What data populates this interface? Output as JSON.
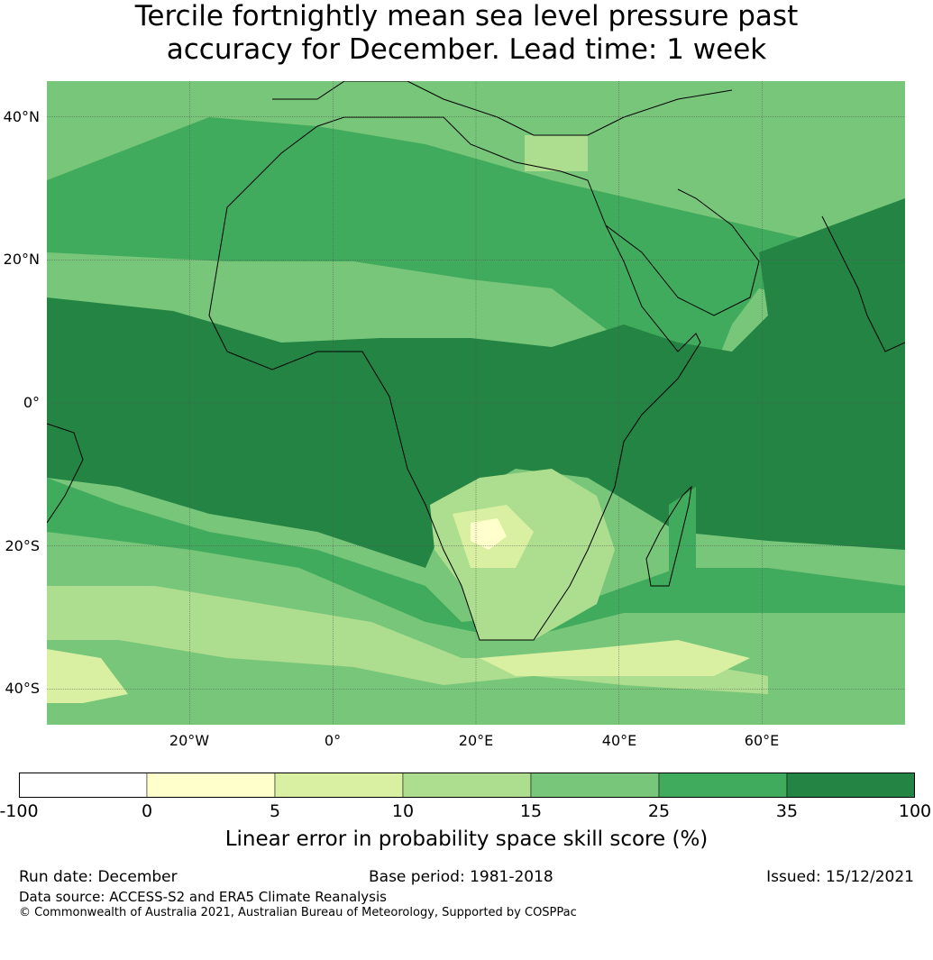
{
  "title": {
    "line1": "Tercile fortnightly mean sea level pressure past",
    "line2": "accuracy for December. Lead time: 1 week"
  },
  "map": {
    "extent": {
      "lon_min": -40,
      "lon_max": 80,
      "lat_min": -45,
      "lat_max": 45
    },
    "gridlines": true,
    "lat_ticks": [
      "40°N",
      "20°N",
      "0°",
      "20°S",
      "40°S"
    ],
    "lon_ticks": [
      "20°W",
      "0°",
      "20°E",
      "40°E",
      "60°E"
    ],
    "regions": [
      {
        "name": "background",
        "category": 4
      },
      {
        "name": "tropical-band",
        "category": 6
      },
      {
        "name": "north-africa",
        "category": 5
      },
      {
        "name": "southern-ocean",
        "category": 3
      },
      {
        "name": "southern-africa",
        "category": 3
      },
      {
        "name": "kalahari-max",
        "category": 1
      }
    ]
  },
  "colorbar": {
    "bounds": [
      "-100",
      "0",
      "5",
      "10",
      "15",
      "25",
      "35",
      "100"
    ],
    "colors": [
      "#ffffff",
      "#ffffcc",
      "#d9f0a3",
      "#addd8e",
      "#78c679",
      "#41ab5d",
      "#238443"
    ],
    "label": "Linear error in probability space skill score (%)"
  },
  "footer": {
    "run_date": "Run date: December",
    "base_period": "Base period: 1981-2018",
    "issued": "Issued: 15/12/2021",
    "data_source": "Data source: ACCESS-S2 and ERA5 Climate Reanalysis",
    "copyright": "© Commonwealth of Australia 2021, Australian Bureau of Meteorology, Supported by COSPPac"
  }
}
